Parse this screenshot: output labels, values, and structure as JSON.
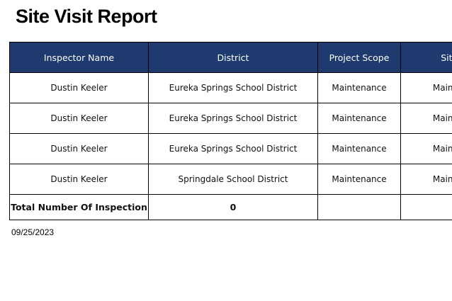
{
  "title": "Site Visit Report",
  "table": {
    "headers": [
      "Inspector Name",
      "District",
      "Project Scope",
      "Site Visit"
    ],
    "rows": [
      [
        "Dustin Keeler",
        "Eureka Springs School District",
        "Maintenance",
        "Maintenance"
      ],
      [
        "Dustin Keeler",
        "Eureka Springs School District",
        "Maintenance",
        "Maintenance"
      ],
      [
        "Dustin Keeler",
        "Eureka Springs School District",
        "Maintenance",
        "Maintenance"
      ],
      [
        "Dustin Keeler",
        "Springdale School District",
        "Maintenance",
        "Maintenance"
      ]
    ],
    "total_label": "Total Number Of Inspection",
    "total_value": "0"
  },
  "date": "09/25/2023",
  "colors": {
    "header_bg": "#1f3a6e",
    "header_text": "#ffffff"
  }
}
